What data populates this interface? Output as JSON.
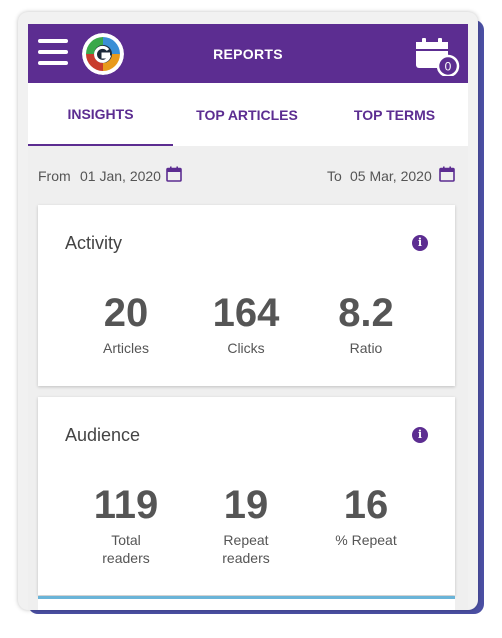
{
  "header": {
    "title": "REPORTS",
    "calendar_badge": "0"
  },
  "icons": {
    "menu": "hamburger-icon",
    "logo": "app-logo",
    "calendar": "calendar-icon",
    "info": "info-icon"
  },
  "colors": {
    "primary": "#5c2d91",
    "background": "#efefef",
    "text": "#555555"
  },
  "tabs": [
    {
      "label": "INSIGHTS",
      "active": true
    },
    {
      "label": "TOP ARTICLES",
      "active": false
    },
    {
      "label": "TOP TERMS",
      "active": false
    }
  ],
  "date_range": {
    "from_label": "From",
    "from_value": "01 Jan, 2020",
    "to_label": "To",
    "to_value": "05 Mar, 2020"
  },
  "activity": {
    "title": "Activity",
    "stats": [
      {
        "value": "20",
        "label": "Articles"
      },
      {
        "value": "164",
        "label": "Clicks"
      },
      {
        "value": "8.2",
        "label": "Ratio"
      }
    ]
  },
  "audience": {
    "title": "Audience",
    "stats": [
      {
        "value": "119",
        "label": "Total readers"
      },
      {
        "value": "19",
        "label": "Repeat readers"
      },
      {
        "value": "16",
        "label": "% Repeat"
      }
    ]
  }
}
